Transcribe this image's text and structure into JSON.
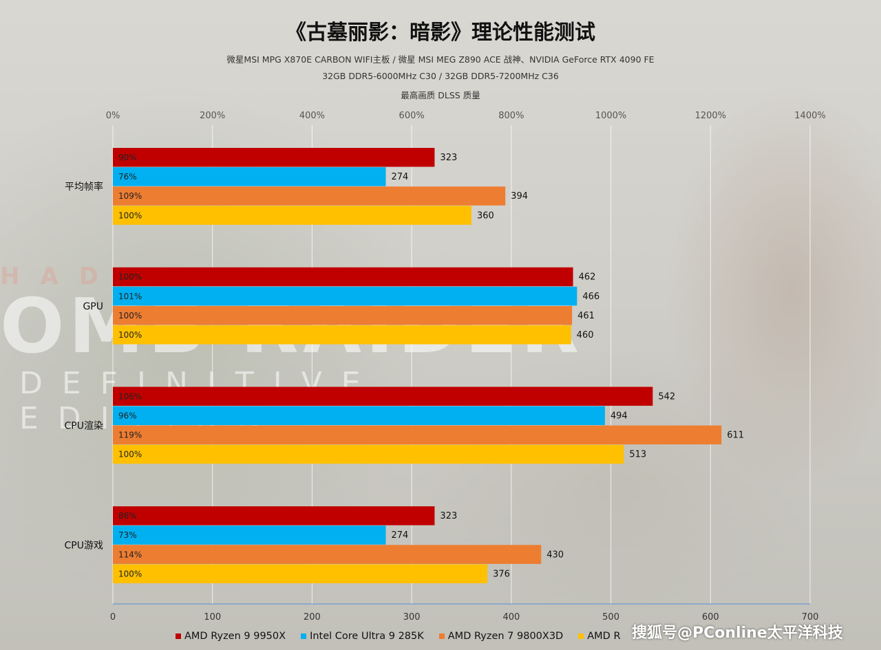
{
  "header": {
    "title": "《古墓丽影：暗影》理论性能测试",
    "subtitle_line1": "微星MSI MPG X870E CARBON WIFI主板 / 微星 MSI MEG Z890 ACE 战神、NVIDIA GeForce RTX 4090 FE",
    "subtitle_line2": "32GB DDR5-6000MHz  C30 / 32GB DDR5-7200MHz  C36",
    "subtitle_line3": "最高画质 DLSS 质量"
  },
  "background_text": {
    "line0": "HAD",
    "line1": "OMB RAIDER",
    "line2": "DEFINITIVE EDITION"
  },
  "watermark": "搜狐号@PConline太平洋科技",
  "chart_data": {
    "type": "bar",
    "orientation": "horizontal",
    "categories": [
      "平均帧率",
      "GPU",
      "CPU渲染",
      "CPU游戏"
    ],
    "series": [
      {
        "name": "AMD Ryzen 9 9950X",
        "color": "#c00000",
        "values": [
          323,
          462,
          542,
          323
        ],
        "percent_labels": [
          "90%",
          "100%",
          "106%",
          "86%"
        ]
      },
      {
        "name": "Intel Core Ultra 9 285K",
        "color": "#00b0f0",
        "values": [
          274,
          466,
          494,
          274
        ],
        "percent_labels": [
          "76%",
          "101%",
          "96%",
          "73%"
        ]
      },
      {
        "name": "AMD Ryzen 7 9800X3D",
        "color": "#ed7d31",
        "values": [
          394,
          461,
          611,
          430
        ],
        "percent_labels": [
          "109%",
          "100%",
          "119%",
          "114%"
        ]
      },
      {
        "name": "AMD Ryzen 7 9800X3D",
        "color": "#ffc000",
        "values": [
          360,
          460,
          513,
          376
        ],
        "percent_labels": [
          "100%",
          "100%",
          "100%",
          "100%"
        ]
      }
    ],
    "legend_labels": [
      "AMD Ryzen 9 9950X",
      "Intel Core Ultra 9 285K",
      "AMD Ryzen 7 9800X3D",
      "AMD R"
    ],
    "x_axis_bottom": {
      "min": 0,
      "max": 700,
      "ticks": [
        "0",
        "100",
        "200",
        "300",
        "400",
        "500",
        "600",
        "700"
      ]
    },
    "x_axis_top": {
      "min": 0,
      "max": 1400,
      "ticks": [
        "0%",
        "200%",
        "400%",
        "600%",
        "800%",
        "1000%",
        "1200%",
        "1400%"
      ]
    },
    "legend_position": "bottom",
    "grid": true
  }
}
